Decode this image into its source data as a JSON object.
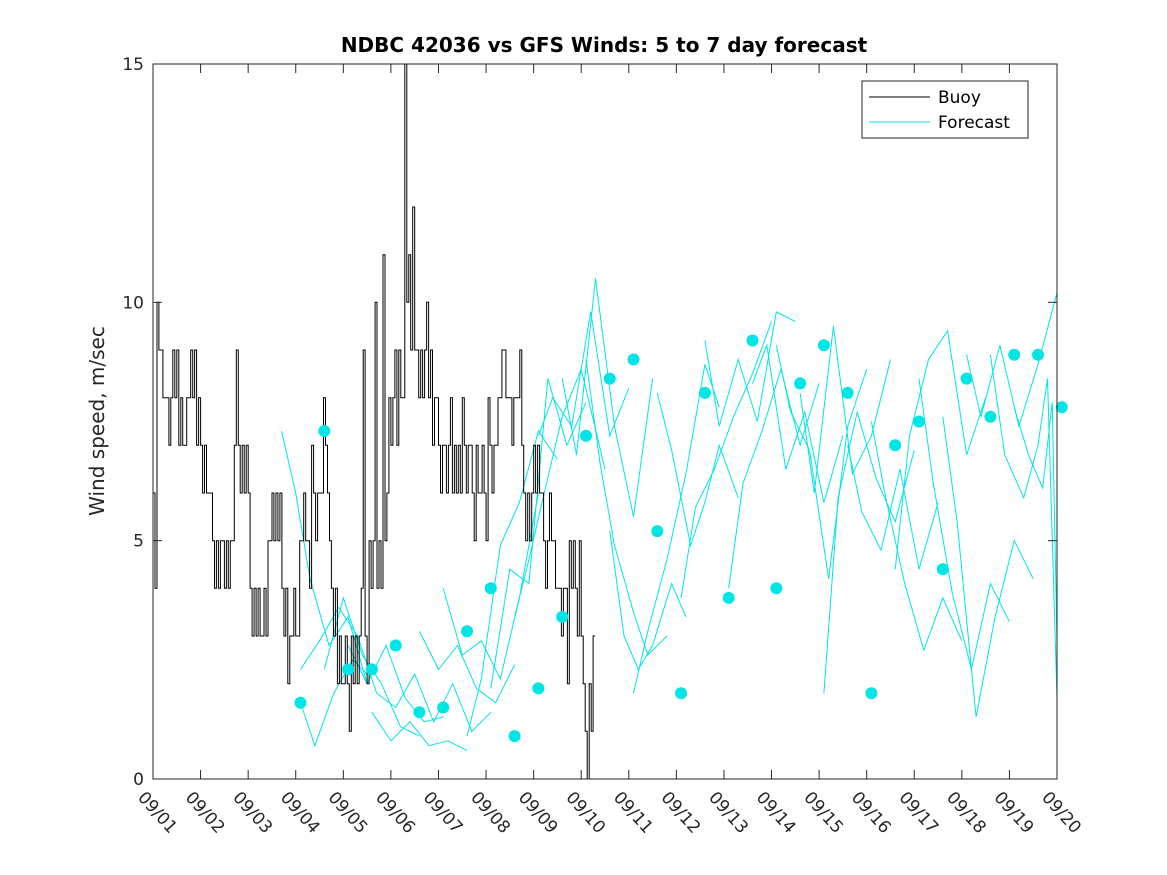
{
  "chart_data": {
    "type": "line",
    "title": "NDBC 42036 vs GFS Winds: 5 to 7 day forecast",
    "xlabel": "",
    "ylabel": "Wind speed, m/sec",
    "xlim": [
      1,
      20
    ],
    "ylim": [
      0,
      15
    ],
    "yticks": [
      0,
      5,
      10,
      15
    ],
    "xtick_labels": [
      "09/01",
      "09/02",
      "09/03",
      "09/04",
      "09/05",
      "09/06",
      "09/07",
      "09/08",
      "09/09",
      "09/10",
      "09/11",
      "09/12",
      "09/13",
      "09/14",
      "09/15",
      "09/16",
      "09/17",
      "09/18",
      "09/19",
      "09/20"
    ],
    "legend": {
      "position": "top-right",
      "entries": [
        "Buoy",
        "Forecast"
      ]
    },
    "colors": {
      "buoy": "#000000",
      "forecast": "#00e5e5"
    },
    "series": [
      {
        "name": "Buoy",
        "x_step_days": 0.04167,
        "x_start": 1.0,
        "values": [
          6,
          4,
          10,
          9,
          9,
          8,
          8,
          8,
          7,
          8,
          9,
          8,
          9,
          7,
          8,
          7,
          7,
          8,
          8,
          9,
          8,
          9,
          7,
          8,
          7,
          6,
          7,
          6,
          6,
          6,
          5,
          4,
          5,
          4,
          5,
          5,
          4,
          5,
          4,
          5,
          5,
          7,
          9,
          7,
          6,
          7,
          6,
          7,
          6,
          4,
          3,
          4,
          3,
          4,
          3,
          3,
          4,
          3,
          5,
          5,
          6,
          5,
          6,
          5,
          6,
          4,
          3,
          4,
          2,
          3,
          3,
          4,
          3,
          3,
          5,
          5,
          6,
          5,
          5,
          4,
          7,
          6,
          5,
          6,
          6,
          6,
          8,
          7,
          6,
          5,
          4,
          3,
          4,
          2,
          3,
          2,
          2,
          3,
          2,
          1,
          3,
          2,
          3,
          2,
          3,
          4,
          9,
          3,
          2,
          5,
          4,
          5,
          10,
          4,
          5,
          4,
          11,
          5,
          6,
          8,
          7,
          8,
          9,
          7,
          9,
          8,
          8,
          15,
          10,
          11,
          9,
          12,
          9,
          9,
          8,
          9,
          8,
          9,
          10,
          8,
          9,
          7,
          8,
          8,
          7,
          6,
          7,
          7,
          6,
          7,
          8,
          6,
          7,
          6,
          7,
          6,
          8,
          7,
          6,
          7,
          7,
          6,
          5,
          7,
          6,
          6,
          7,
          6,
          5,
          8,
          7,
          6,
          7,
          7,
          8,
          8,
          9,
          9,
          8,
          8,
          8,
          7,
          8,
          8,
          8,
          9,
          7,
          6,
          5,
          6,
          5,
          6,
          7,
          6,
          7,
          6,
          6,
          5,
          4,
          5,
          6,
          5,
          5,
          4,
          4,
          4,
          3,
          4,
          4,
          2,
          5,
          4,
          5,
          4,
          3,
          5,
          3,
          2,
          1,
          0,
          2,
          1,
          3
        ]
      },
      {
        "name": "Forecast",
        "segments": [
          [
            [
              4.1,
              1.6
            ],
            [
              4.4,
              0.7
            ],
            [
              4.8,
              1.8
            ],
            [
              5.2,
              2.5
            ],
            [
              5.5,
              2.2
            ]
          ],
          [
            [
              3.7,
              7.3
            ],
            [
              4.0,
              6.0
            ],
            [
              4.3,
              4.2
            ],
            [
              4.7,
              2.8
            ],
            [
              5.1,
              3.4
            ],
            [
              5.5,
              2.0
            ]
          ],
          [
            [
              4.1,
              2.3
            ],
            [
              4.5,
              2.9
            ],
            [
              4.9,
              3.6
            ],
            [
              5.3,
              3.0
            ],
            [
              5.7,
              1.8
            ],
            [
              6.1,
              1.5
            ]
          ],
          [
            [
              4.6,
              2.3
            ],
            [
              5.0,
              3.8
            ],
            [
              5.4,
              2.6
            ],
            [
              5.8,
              2.0
            ],
            [
              6.2,
              1.1
            ],
            [
              6.6,
              0.9
            ]
          ],
          [
            [
              5.1,
              2.8
            ],
            [
              5.5,
              2.0
            ],
            [
              5.9,
              2.8
            ],
            [
              6.3,
              1.7
            ],
            [
              6.7,
              1.2
            ],
            [
              7.1,
              1.3
            ]
          ],
          [
            [
              5.6,
              1.4
            ],
            [
              6.0,
              0.8
            ],
            [
              6.4,
              1.2
            ],
            [
              6.8,
              0.7
            ],
            [
              7.2,
              0.8
            ],
            [
              7.6,
              0.6
            ]
          ],
          [
            [
              6.1,
              1.5
            ],
            [
              6.5,
              2.2
            ],
            [
              6.9,
              1.2
            ],
            [
              7.3,
              2.0
            ],
            [
              7.7,
              1.0
            ],
            [
              8.1,
              1.4
            ]
          ],
          [
            [
              6.6,
              3.1
            ],
            [
              7.0,
              2.3
            ],
            [
              7.4,
              2.8
            ],
            [
              7.8,
              1.9
            ],
            [
              8.2,
              1.6
            ],
            [
              8.6,
              2.4
            ]
          ],
          [
            [
              7.1,
              4.0
            ],
            [
              7.5,
              2.6
            ],
            [
              7.9,
              2.9
            ],
            [
              8.3,
              2.1
            ],
            [
              8.7,
              3.8
            ],
            [
              9.1,
              6.0
            ]
          ],
          [
            [
              7.6,
              0.9
            ],
            [
              7.9,
              2.1
            ],
            [
              8.3,
              4.9
            ],
            [
              8.7,
              5.8
            ],
            [
              9.1,
              7.3
            ],
            [
              9.5,
              6.7
            ]
          ],
          [
            [
              8.1,
              1.9
            ],
            [
              8.5,
              4.4
            ],
            [
              8.9,
              4.1
            ],
            [
              9.3,
              8.4
            ],
            [
              9.7,
              7.0
            ],
            [
              10.1,
              7.9
            ]
          ],
          [
            [
              8.6,
              3.4
            ],
            [
              8.9,
              4.6
            ],
            [
              9.2,
              5.9
            ],
            [
              9.6,
              7.6
            ],
            [
              10.0,
              8.6
            ],
            [
              10.5,
              6.5
            ]
          ],
          [
            [
              9.1,
              7.2
            ],
            [
              9.4,
              8.0
            ],
            [
              9.8,
              7.4
            ],
            [
              10.2,
              9.8
            ],
            [
              10.6,
              7.2
            ],
            [
              11.0,
              8.2
            ]
          ],
          [
            [
              9.6,
              8.4
            ],
            [
              9.9,
              6.8
            ],
            [
              10.3,
              10.5
            ],
            [
              10.7,
              7.4
            ],
            [
              11.1,
              5.5
            ],
            [
              11.5,
              8.4
            ]
          ],
          [
            [
              10.1,
              8.8
            ],
            [
              10.4,
              6.6
            ],
            [
              10.7,
              4.9
            ],
            [
              11.1,
              3.5
            ],
            [
              11.4,
              2.6
            ],
            [
              11.8,
              3.0
            ]
          ],
          [
            [
              10.6,
              5.2
            ],
            [
              10.9,
              3.0
            ],
            [
              11.2,
              2.3
            ],
            [
              11.5,
              2.8
            ],
            [
              11.9,
              4.1
            ],
            [
              12.2,
              3.4
            ]
          ],
          [
            [
              11.1,
              1.8
            ],
            [
              11.4,
              3.1
            ],
            [
              11.8,
              4.6
            ],
            [
              12.2,
              6.4
            ],
            [
              12.6,
              8.7
            ],
            [
              12.9,
              7.8
            ]
          ],
          [
            [
              11.6,
              8.1
            ],
            [
              11.9,
              6.9
            ],
            [
              12.3,
              4.9
            ],
            [
              12.6,
              5.8
            ],
            [
              12.9,
              7.0
            ],
            [
              13.3,
              5.9
            ]
          ],
          [
            [
              12.1,
              3.8
            ],
            [
              12.4,
              5.7
            ],
            [
              12.8,
              6.5
            ],
            [
              13.2,
              7.6
            ],
            [
              13.6,
              8.5
            ],
            [
              14.0,
              9.6
            ]
          ],
          [
            [
              12.6,
              9.2
            ],
            [
              12.9,
              7.4
            ],
            [
              13.3,
              8.8
            ],
            [
              13.7,
              7.5
            ],
            [
              14.1,
              9.8
            ],
            [
              14.5,
              9.6
            ]
          ],
          [
            [
              13.1,
              4.0
            ],
            [
              13.4,
              6.2
            ],
            [
              13.8,
              7.3
            ],
            [
              14.2,
              8.6
            ],
            [
              14.6,
              7.0
            ],
            [
              15.0,
              8.3
            ]
          ],
          [
            [
              13.6,
              8.3
            ],
            [
              13.9,
              9.1
            ],
            [
              14.3,
              6.5
            ],
            [
              14.7,
              7.7
            ],
            [
              15.1,
              5.8
            ],
            [
              15.5,
              7.2
            ]
          ],
          [
            [
              14.1,
              9.1
            ],
            [
              14.4,
              7.7
            ],
            [
              14.8,
              6.9
            ],
            [
              15.2,
              4.2
            ],
            [
              15.6,
              7.4
            ],
            [
              16.0,
              8.6
            ]
          ],
          [
            [
              14.6,
              8.1
            ],
            [
              14.9,
              6.0
            ],
            [
              15.3,
              9.5
            ],
            [
              15.7,
              6.4
            ],
            [
              16.1,
              7.2
            ],
            [
              16.5,
              8.8
            ]
          ],
          [
            [
              15.1,
              1.8
            ],
            [
              15.4,
              5.9
            ],
            [
              15.8,
              7.7
            ],
            [
              16.2,
              6.3
            ],
            [
              16.6,
              5.4
            ],
            [
              17.0,
              6.9
            ]
          ],
          [
            [
              15.6,
              7.0
            ],
            [
              15.9,
              5.6
            ],
            [
              16.3,
              4.8
            ],
            [
              16.7,
              6.5
            ],
            [
              17.1,
              4.4
            ],
            [
              17.5,
              5.8
            ]
          ],
          [
            [
              16.1,
              7.5
            ],
            [
              16.4,
              5.9
            ],
            [
              16.8,
              4.1
            ],
            [
              17.2,
              2.7
            ],
            [
              17.6,
              3.8
            ],
            [
              18.0,
              2.9
            ]
          ],
          [
            [
              16.6,
              4.4
            ],
            [
              16.9,
              7.2
            ],
            [
              17.3,
              8.8
            ],
            [
              17.7,
              9.4
            ],
            [
              18.1,
              6.8
            ],
            [
              18.5,
              8.0
            ]
          ],
          [
            [
              17.1,
              8.4
            ],
            [
              17.4,
              6.2
            ],
            [
              17.8,
              3.9
            ],
            [
              18.2,
              2.3
            ],
            [
              18.6,
              4.1
            ],
            [
              19.0,
              3.3
            ]
          ],
          [
            [
              17.6,
              7.6
            ],
            [
              17.9,
              5.4
            ],
            [
              18.3,
              1.3
            ],
            [
              18.7,
              3.4
            ],
            [
              19.1,
              5.0
            ],
            [
              19.5,
              4.2
            ]
          ],
          [
            [
              18.1,
              8.9
            ],
            [
              18.4,
              7.6
            ],
            [
              18.8,
              9.1
            ],
            [
              19.2,
              7.4
            ],
            [
              19.6,
              8.7
            ],
            [
              20.0,
              10.2
            ]
          ],
          [
            [
              18.6,
              8.9
            ],
            [
              18.9,
              6.8
            ],
            [
              19.3,
              5.9
            ],
            [
              19.6,
              7.0
            ],
            [
              19.8,
              8.4
            ],
            [
              20.0,
              1.7
            ]
          ],
          [
            [
              19.1,
              7.8
            ],
            [
              19.4,
              6.8
            ],
            [
              19.7,
              6.1
            ],
            [
              19.9,
              7.9
            ],
            [
              20.0,
              2.9
            ]
          ]
        ],
        "points": [
          [
            4.1,
            1.6
          ],
          [
            4.6,
            7.3
          ],
          [
            5.1,
            2.3
          ],
          [
            5.6,
            2.3
          ],
          [
            6.1,
            2.8
          ],
          [
            6.6,
            1.4
          ],
          [
            7.1,
            1.5
          ],
          [
            7.6,
            3.1
          ],
          [
            8.1,
            4.0
          ],
          [
            8.6,
            0.9
          ],
          [
            9.1,
            1.9
          ],
          [
            9.6,
            3.4
          ],
          [
            10.1,
            7.2
          ],
          [
            10.6,
            8.4
          ],
          [
            11.1,
            8.8
          ],
          [
            11.6,
            5.2
          ],
          [
            12.1,
            1.8
          ],
          [
            12.6,
            8.1
          ],
          [
            13.1,
            3.8
          ],
          [
            13.6,
            9.2
          ],
          [
            14.1,
            4.0
          ],
          [
            14.6,
            8.3
          ],
          [
            15.1,
            9.1
          ],
          [
            15.6,
            8.1
          ],
          [
            16.1,
            1.8
          ],
          [
            16.6,
            7.0
          ],
          [
            17.1,
            7.5
          ],
          [
            17.6,
            4.4
          ],
          [
            18.1,
            8.4
          ],
          [
            18.6,
            7.6
          ],
          [
            19.1,
            8.9
          ],
          [
            19.6,
            8.9
          ],
          [
            20.1,
            7.8
          ]
        ]
      }
    ]
  }
}
